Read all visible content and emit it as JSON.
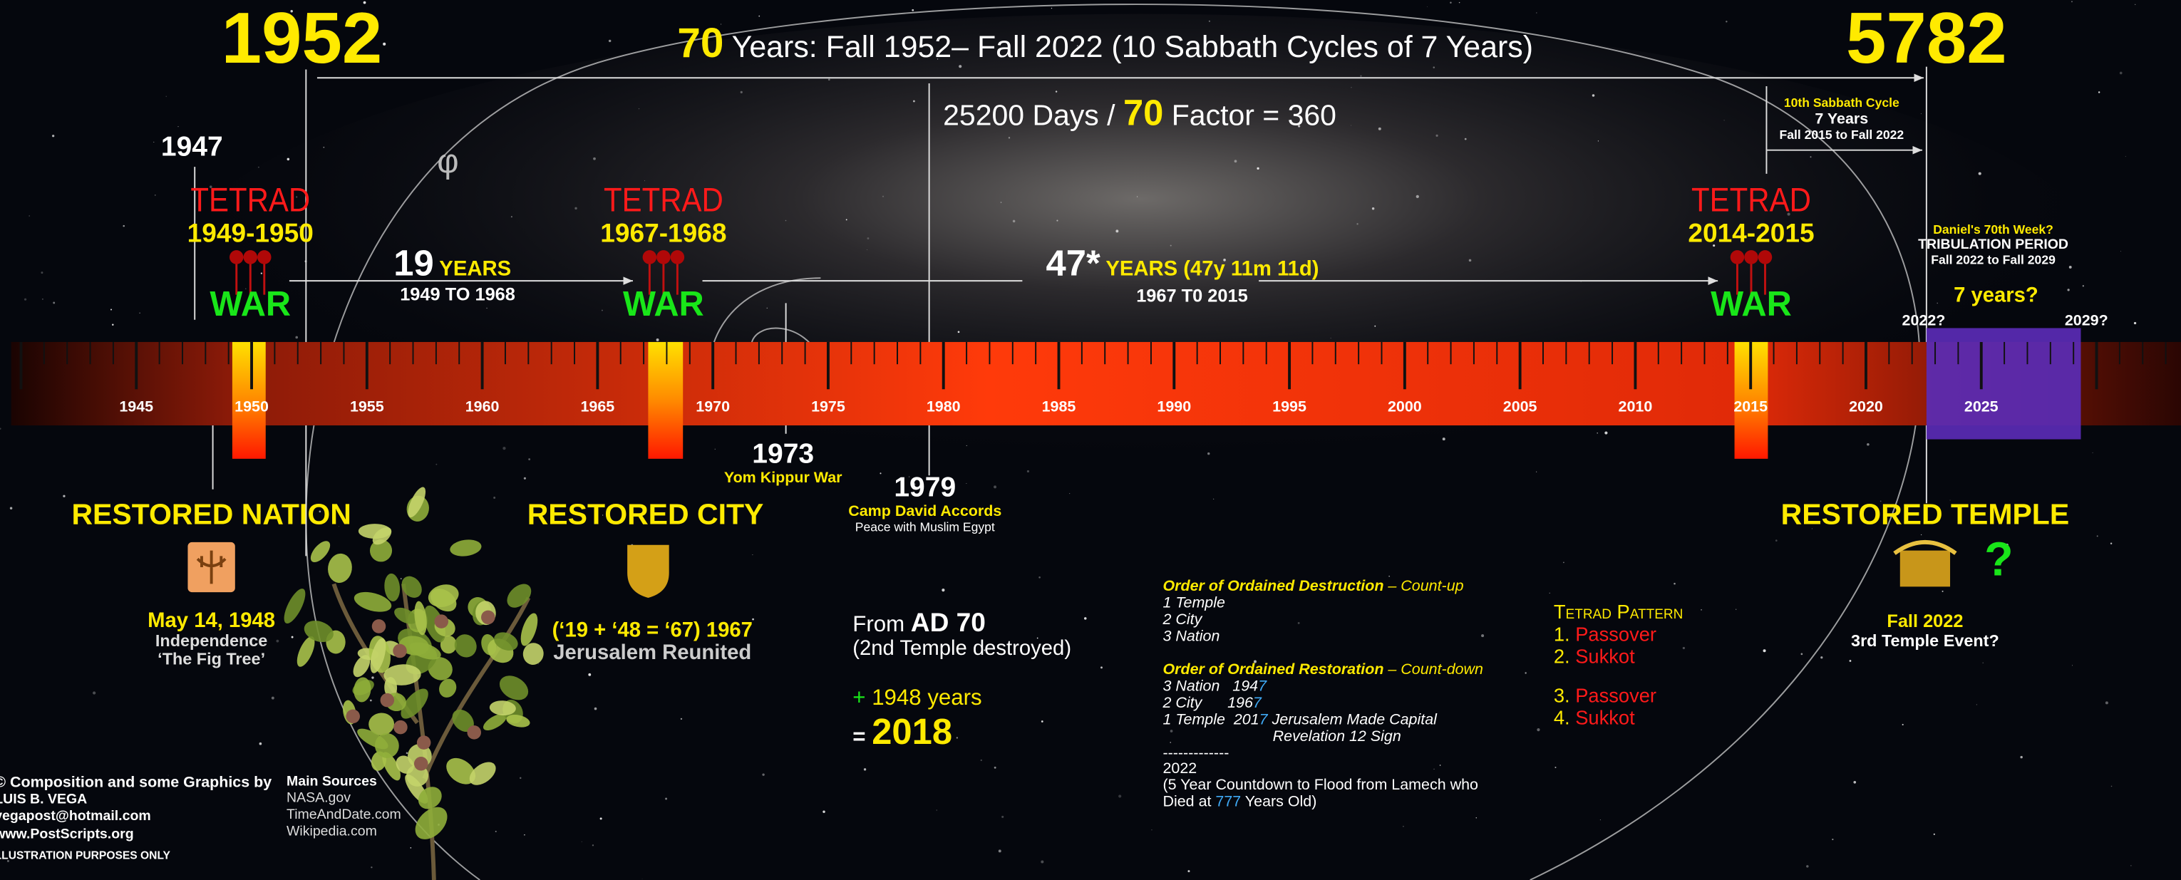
{
  "header": {
    "start_year": "1952",
    "end_year": "5782",
    "title_number": "70",
    "title_text": " Years: Fall 1952– Fall 2022 (10 Sabbath Cycles of 7 Years)",
    "days_text": "25200 Days / ",
    "days_number": "70",
    "days_factor": " Factor = 360"
  },
  "sabbath_cycle": {
    "title": "10th Sabbath Cycle",
    "years": "7 Years",
    "range": "Fall 2015 to Fall 2022"
  },
  "phi": "φ",
  "year_1947": "1947",
  "tetrads": [
    {
      "label": "TETRAD",
      "years": "1949-1950",
      "war": "WAR"
    },
    {
      "label": "TETRAD",
      "years": "1967-1968",
      "war": "WAR"
    },
    {
      "label": "TETRAD",
      "years": "2014-2015",
      "war": "WAR"
    }
  ],
  "span_19": {
    "number": "19",
    "unit": " YEARS",
    "range": "1949 TO 1968"
  },
  "span_47": {
    "number": "47*",
    "unit": " YEARS (47y 11m 11d)",
    "range": "1967 T0 2015"
  },
  "daniel": {
    "title": "Daniel's 70th Week?",
    "period": "TRIBULATION PERIOD",
    "range": "Fall 2022 to Fall 2029",
    "duration": "7 years?",
    "start": "2022?",
    "end": "2029?"
  },
  "timeline_years": [
    "1945",
    "1950",
    "1955",
    "1960",
    "1965",
    "1970",
    "1975",
    "1980",
    "1985",
    "1990",
    "1995",
    "2000",
    "2005",
    "2010",
    "2015",
    "2020",
    "2025"
  ],
  "event_1973": {
    "year": "1973",
    "label": "Yom Kippur War"
  },
  "event_1979": {
    "year": "1979",
    "label": "Camp David Accords",
    "note": "Peace with Muslim Egypt"
  },
  "restored_nation": {
    "title": "RESTORED NATION",
    "date": "May 14, 1948",
    "line1": "Independence",
    "line2": "‘The Fig Tree’"
  },
  "restored_city": {
    "title": "RESTORED CITY",
    "formula": "(‘19 + ‘48 = ‘67)  1967",
    "line1": "Jerusalem Reunited"
  },
  "restored_temple": {
    "title": "RESTORED TEMPLE",
    "mark": "?",
    "date": "Fall 2022",
    "line1": "3rd Temple Event?"
  },
  "ad70": {
    "from": "From ",
    "year": "AD 70",
    "note": "(2nd Temple destroyed)",
    "plus": "+ ",
    "years": "1948 years",
    "equals": "= ",
    "result": "2018"
  },
  "destruction": {
    "title": "Order of Ordained Destruction",
    "suffix": " – Count-up",
    "items": [
      "1 Temple",
      "2 City",
      "3 Nation"
    ]
  },
  "restoration": {
    "title": "Order of Ordained Restoration",
    "suffix": " – Count-down",
    "items": [
      [
        "3 Nation   194",
        "7",
        ""
      ],
      [
        "2 City      196",
        "7",
        ""
      ],
      [
        "1 Temple  201",
        "7",
        " Jerusalem Made Capital"
      ]
    ],
    "extra": "Revelation 12 Sign"
  },
  "countdown": {
    "divider": "-------------",
    "year": "2022",
    "line1": "(5 Year Countdown to Flood from Lamech who",
    "line2_pre": "Died at ",
    "line2_num": "777",
    "line2_post": " Years Old)"
  },
  "tetrad_pattern": {
    "title": "Tetrad Pattern",
    "items": [
      {
        "n": "1. ",
        "feast": "Passover"
      },
      {
        "n": "2. ",
        "feast": "Sukkot"
      },
      {
        "n": "3. ",
        "feast": "Passover"
      },
      {
        "n": "4. ",
        "feast": "Sukkot"
      }
    ]
  },
  "credits": [
    "© Composition and some Graphics by",
    "LUIS B. VEGA",
    "vegapost@hotmail.com",
    "www.PostScripts.org",
    "ILLUSTRATION PURPOSES ONLY"
  ],
  "sources": {
    "title": "Main Sources",
    "items": [
      "NASA.gov",
      "TimeAndDate.com",
      "Wikipedia.com"
    ]
  }
}
